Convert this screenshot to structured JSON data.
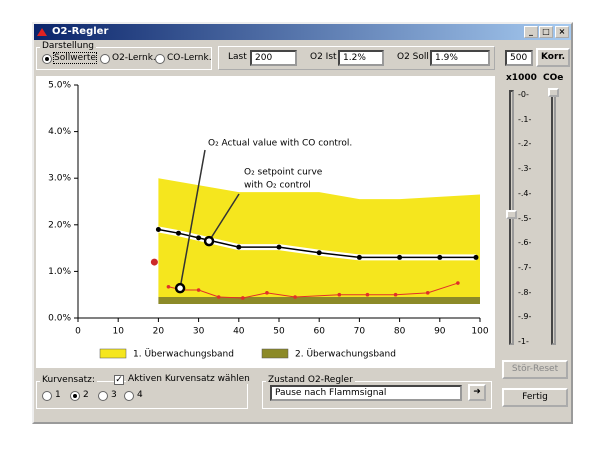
{
  "window": {
    "title": "O2-Regler"
  },
  "display": {
    "label": "Darstellung",
    "options": [
      "Sollwerte",
      "O2-Lernk.",
      "CO-Lernk."
    ],
    "selected": 0
  },
  "status": {
    "fields": [
      {
        "label": "Last",
        "value": "200"
      },
      {
        "label": "O2 Ist",
        "value": "1.2%"
      },
      {
        "label": "O2 Soll",
        "value": "1.9%"
      }
    ]
  },
  "correction": {
    "value": "500",
    "button": "Korr.",
    "unit": "x1000",
    "label": "COe",
    "scale": [
      "-0-",
      "-.1-",
      "-.2-",
      "-.3-",
      "-.4-",
      "-.5-",
      "-.6-",
      "-.7-",
      "-.8-",
      "-.9-",
      "-1-"
    ]
  },
  "buttons": {
    "reset": "Stör-Reset",
    "done": "Fertig"
  },
  "curve_set": {
    "label": "Kurvensatz:",
    "checkbox": "Aktiven Kurvensatz wählen",
    "checked": true,
    "options": [
      "1",
      "2",
      "3",
      "4"
    ],
    "selected": 1
  },
  "state": {
    "label": "Zustand O2-Regler",
    "value": "Pause nach Flammsignal"
  },
  "chart_data": {
    "type": "line",
    "xlim": [
      0,
      100
    ],
    "xticks": [
      0,
      10,
      20,
      30,
      40,
      50,
      60,
      70,
      80,
      90,
      100
    ],
    "ylim": [
      0,
      5
    ],
    "yticks": [
      {
        "value": 0,
        "label": "0.0%"
      },
      {
        "value": 1,
        "label": "1.0%"
      },
      {
        "value": 2,
        "label": "2.0%"
      },
      {
        "value": 3,
        "label": "3.0%"
      },
      {
        "value": 4,
        "label": "4.0%"
      },
      {
        "value": 5,
        "label": "5.0%"
      }
    ],
    "series": [
      {
        "name": "1. Überwachungsband",
        "color": "#f5e61e",
        "x": [
          20,
          40,
          60,
          70,
          80,
          100
        ],
        "upper": [
          3.0,
          2.7,
          2.7,
          2.55,
          2.55,
          2.65
        ],
        "lower": [
          0.45,
          0.45,
          0.45,
          0.45,
          0.45,
          0.45
        ]
      },
      {
        "name": "2. Überwachungsband",
        "color": "#8c8a28",
        "x": [
          20,
          100
        ],
        "upper": [
          0.45,
          0.45
        ],
        "lower": [
          0.3,
          0.3
        ]
      }
    ],
    "lines": [
      {
        "color": "#000000",
        "x": [
          20,
          25,
          30,
          40,
          50,
          60,
          70,
          80,
          90,
          99
        ],
        "values": [
          1.9,
          1.82,
          1.72,
          1.52,
          1.52,
          1.4,
          1.3,
          1.3,
          1.3,
          1.3
        ]
      },
      {
        "color": "#e0302a",
        "x": [
          22.5,
          26,
          30,
          35,
          41,
          47,
          54,
          65,
          72,
          79,
          87,
          94.5
        ],
        "values": [
          0.67,
          0.6,
          0.6,
          0.45,
          0.43,
          0.54,
          0.45,
          0.5,
          0.5,
          0.5,
          0.54,
          0.75
        ]
      }
    ],
    "current": {
      "x": 19,
      "y": 1.2,
      "color": "#cc2a2a"
    },
    "annotations": [
      {
        "text": [
          "O₂ Actual value with CO control."
        ],
        "x": 25.4,
        "y": 0.64
      },
      {
        "text": [
          "O₂ setpoint curve",
          "with O₂ control"
        ],
        "x": 32.6,
        "y": 1.65
      }
    ]
  }
}
